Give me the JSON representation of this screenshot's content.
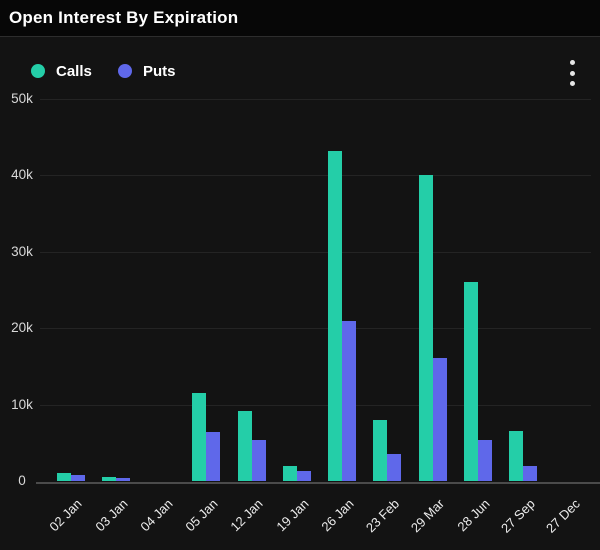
{
  "header": {
    "title": "Open Interest By Expiration"
  },
  "menu": {
    "icon": "kebab-vertical-icon"
  },
  "colors": {
    "calls": "#24CEA8",
    "puts": "#5F68EA",
    "header_bg": "#070707",
    "card_bg": "#131313",
    "gridline": "#242424",
    "axis_text": "#d9d9d9"
  },
  "chart_data": {
    "type": "bar",
    "title": "Open Interest By Expiration",
    "categories": [
      "02 Jan",
      "03 Jan",
      "04 Jan",
      "05 Jan",
      "12 Jan",
      "19 Jan",
      "26 Jan",
      "23 Feb",
      "29 Mar",
      "28 Jun",
      "27 Sep",
      "27 Dec"
    ],
    "series": [
      {
        "name": "Calls",
        "color": "#24CEA8",
        "values": [
          1100,
          500,
          0,
          11500,
          9200,
          1900,
          43200,
          8000,
          40100,
          26100,
          6500,
          0
        ]
      },
      {
        "name": "Puts",
        "color": "#5F68EA",
        "values": [
          800,
          400,
          0,
          6400,
          5400,
          1300,
          20900,
          3500,
          16100,
          5400,
          1900,
          0
        ]
      }
    ],
    "xlabel": "",
    "ylabel": "",
    "ylim": [
      0,
      50000
    ],
    "yticks": [
      {
        "value": 50000,
        "label": "50k"
      },
      {
        "value": 40000,
        "label": "40k"
      },
      {
        "value": 30000,
        "label": "30k"
      },
      {
        "value": 20000,
        "label": "20k"
      },
      {
        "value": 10000,
        "label": "10k"
      },
      {
        "value": 0,
        "label": "0"
      }
    ],
    "grid": true,
    "legend_position": "top-left"
  }
}
